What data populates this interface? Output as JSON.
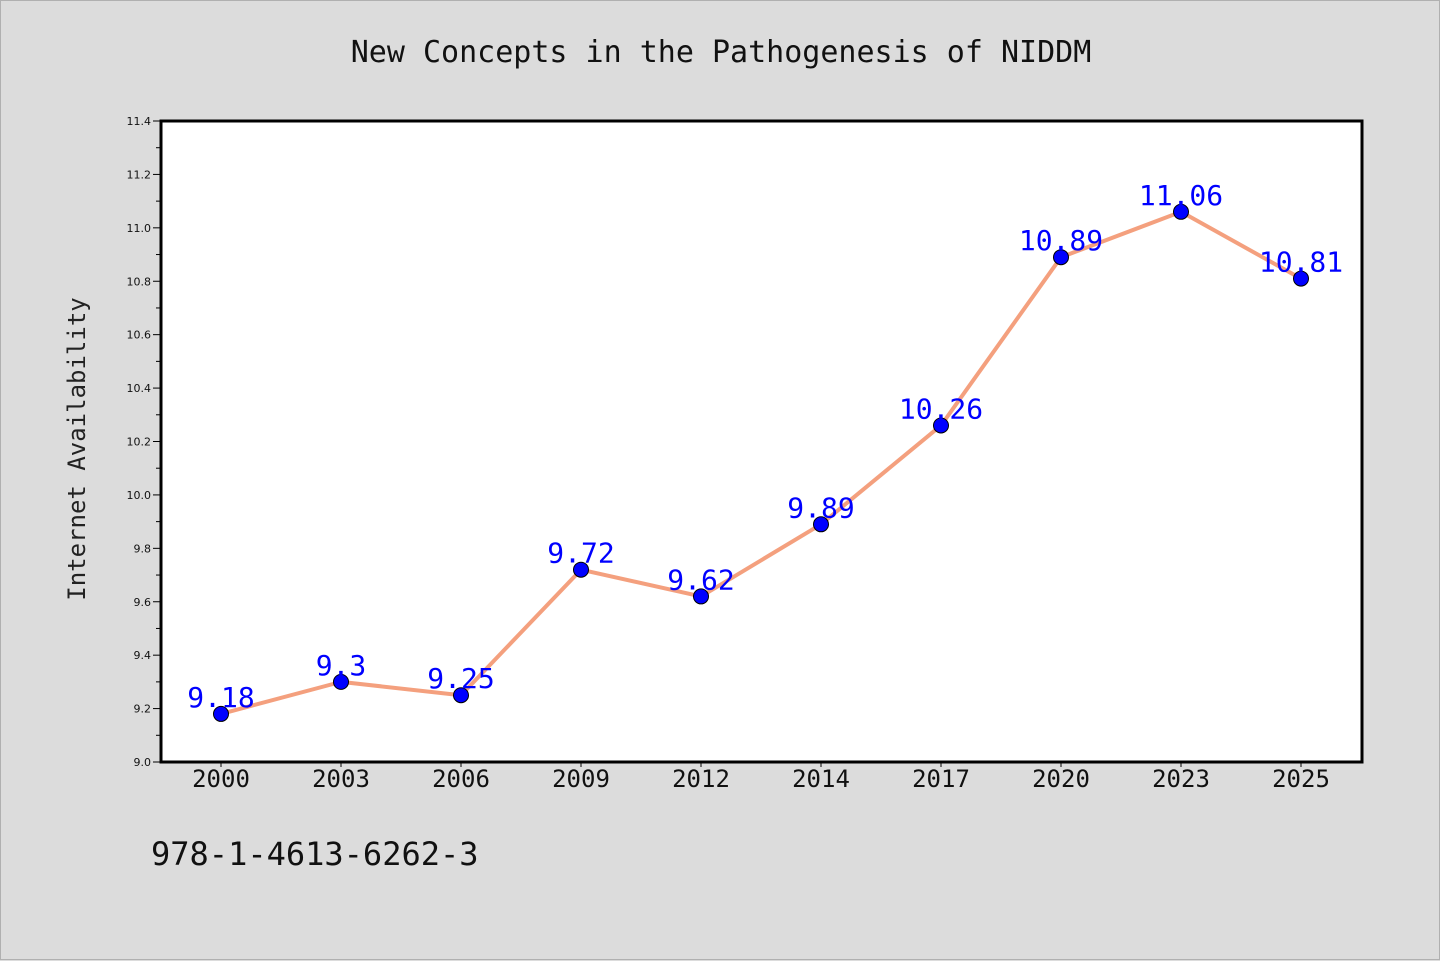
{
  "chart_data": {
    "type": "line",
    "title": "New Concepts in the Pathogenesis of NIDDM",
    "ylabel": "Internet Availability",
    "xlabel": "",
    "categories": [
      "2000",
      "2003",
      "2006",
      "2009",
      "2012",
      "2014",
      "2017",
      "2020",
      "2023",
      "2025"
    ],
    "series": [
      {
        "values": [
          9.18,
          9.3,
          9.25,
          9.72,
          9.62,
          9.89,
          10.26,
          10.89,
          11.06,
          10.81
        ],
        "labels": [
          "9.18",
          "9.3",
          "9.25",
          "9.72",
          "9.62",
          "9.89",
          "10.26",
          "10.89",
          "11.06",
          "10.81"
        ],
        "line_color": "#f4a07e",
        "marker_color": "#0000ff",
        "label_color": "#0000ff"
      }
    ],
    "ylim": [
      9.0,
      11.4
    ],
    "yticks": [
      "9.0",
      "9.2",
      "9.4",
      "9.6",
      "9.8",
      "10.0",
      "10.2",
      "10.4",
      "10.6",
      "10.8",
      "11.0",
      "11.2",
      "11.4"
    ],
    "grid": false,
    "legend": "none"
  },
  "footer": {
    "isbn": "978-1-4613-6262-3"
  },
  "colors": {
    "background": "#dcdcdc",
    "plot_background": "#ffffff",
    "axis": "#000000"
  }
}
